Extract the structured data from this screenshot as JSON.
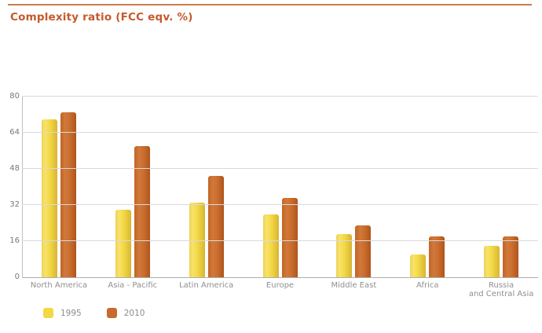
{
  "header": {
    "title": "Complexity ratio (FCC eqv. %)",
    "accent_color": "#c5592b",
    "rule_color": "#cb7c4b"
  },
  "chart_data": {
    "type": "bar",
    "title": "Complexity ratio (FCC eqv. %)",
    "categories": [
      "North America",
      "Asia - Pacific",
      "Latin America",
      "Europe",
      "Middle East",
      "Africa",
      "Russia\nand Central Asia"
    ],
    "series": [
      {
        "name": "1995",
        "color": "#f2d843",
        "values": [
          70,
          30,
          33,
          28,
          19,
          10,
          14
        ]
      },
      {
        "name": "2010",
        "color": "#c9692d",
        "values": [
          73,
          58,
          45,
          35,
          23,
          18,
          18
        ]
      }
    ],
    "xlabel": "",
    "ylabel": "",
    "ylim": [
      0,
      80
    ],
    "yticks": [
      0,
      16,
      32,
      48,
      64,
      80
    ],
    "grid": true,
    "legend_position": "bottom-left"
  }
}
